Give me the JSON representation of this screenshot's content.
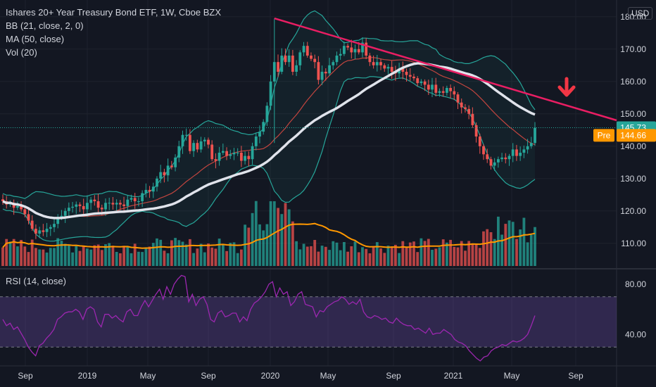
{
  "header": {
    "title": "Ishares 20+ Year Treasury Bond ETF, 1W, Cboe BZX",
    "indicators": [
      "BB (21, close, 2, 0)",
      "MA (50, close)",
      "Vol (20)"
    ],
    "currency": "USD"
  },
  "rsi": {
    "label": "RSI (14, close)"
  },
  "price_tags": {
    "last": {
      "label": "145.73",
      "value": 145.73,
      "color": "#26a69a"
    },
    "pre": {
      "tag": "Pre",
      "label": "144.66",
      "value": 144.66,
      "color": "#ff9800"
    }
  },
  "colors": {
    "background": "#131722",
    "up": "#26a69a",
    "down": "#ef5350",
    "ma": "#e0e3eb",
    "bb_mid": "#c2453f",
    "bb_band": "#26a69a",
    "trendline": "#e91e63",
    "arrow": "#f23645",
    "volume_ma": "#ff9800",
    "rsi": "#9c27b0",
    "rsi_band": "#7e57c2"
  },
  "chart_data": [
    {
      "type": "candlestick",
      "title": "Ishares 20+ Year Treasury Bond ETF, 1W, Cboe BZX",
      "x_ticks": [
        "Sep",
        "2019",
        "May",
        "Sep",
        "2020",
        "May",
        "Sep",
        "2021",
        "May",
        "Sep"
      ],
      "y_ticks": [
        "110.00",
        "120.00",
        "130.00",
        "140.00",
        "150.00",
        "160.00",
        "170.00",
        "180.00"
      ],
      "ylim": [
        103,
        183
      ],
      "series": [
        {
          "name": "Price close (weekly, approx.)",
          "values": [
            123,
            122,
            122.5,
            121,
            121.5,
            120.5,
            119,
            117,
            114.5,
            113,
            114,
            113.5,
            114.5,
            115,
            116,
            118,
            118.5,
            120,
            121,
            121.3,
            122,
            121.5,
            120.5,
            122.5,
            123.5,
            123,
            121,
            120.5,
            122.5,
            122.5,
            122,
            122.5,
            122,
            121.5,
            123.5,
            124,
            123,
            123,
            125.5,
            126.5,
            126,
            127.5,
            130,
            132,
            131,
            134,
            133.5,
            136.5,
            140,
            143.5,
            143.5,
            138.5,
            141,
            139,
            141.5,
            142,
            140.5,
            136,
            135.5,
            138,
            138.5,
            137,
            137.5,
            138,
            138,
            135.5,
            137,
            136,
            140,
            143,
            144.5,
            147.5,
            152.5,
            160,
            166,
            163,
            168,
            166,
            168,
            163,
            165,
            169,
            171,
            168,
            167,
            166,
            160.5,
            163,
            162.5,
            165,
            166,
            168,
            168.5,
            171,
            170.5,
            169,
            170,
            169,
            172,
            168,
            166,
            165,
            166,
            165,
            164,
            164.5,
            163,
            162.5,
            164,
            163,
            162,
            161.5,
            161,
            159.5,
            160,
            159,
            157.5,
            159,
            156.5,
            157,
            156.5,
            158,
            157,
            156,
            153.5,
            152,
            151.5,
            150,
            146.5,
            143,
            140,
            137.5,
            136,
            134,
            135,
            136,
            136.5,
            136,
            137,
            139,
            137,
            138,
            139,
            140,
            141,
            145.7
          ]
        },
        {
          "name": "Moving Average (50, close)",
          "values": []
        },
        {
          "name": "Bollinger Bands (21, close, 2, 0)",
          "values": []
        }
      ],
      "annotations": {
        "trendline": {
          "from": {
            "x": "2020-03",
            "y": 179.5
          },
          "to": {
            "x": "2021-10",
            "y": 148
          }
        },
        "arrow": "downward arrow near Aug 2021",
        "last_price": 145.73,
        "pre_market": 144.66
      }
    },
    {
      "type": "bar",
      "title": "Vol (20)",
      "values": []
    },
    {
      "type": "line",
      "title": "RSI (14, close)",
      "y_ticks": [
        "40.00",
        "80.00"
      ],
      "ylim": [
        15,
        90
      ],
      "band": [
        30,
        70
      ],
      "values": [
        52,
        47,
        49,
        44,
        46,
        41,
        36,
        30,
        26,
        23,
        31,
        33,
        37,
        40,
        44,
        52,
        54,
        57,
        58,
        58,
        60,
        58,
        52,
        60,
        62,
        60,
        50,
        46,
        56,
        56,
        53,
        55,
        52,
        50,
        58,
        60,
        55,
        55,
        62,
        67,
        62,
        67,
        72,
        76,
        68,
        78,
        72,
        80,
        84,
        87,
        86,
        66,
        72,
        63,
        68,
        70,
        64,
        52,
        50,
        57,
        59,
        54,
        55,
        57,
        57,
        50,
        54,
        51,
        60,
        65,
        67,
        70,
        74,
        80,
        82,
        70,
        77,
        72,
        74,
        63,
        66,
        72,
        74,
        64,
        63,
        62,
        54,
        59,
        58,
        62,
        64,
        66,
        67,
        70,
        68,
        64,
        66,
        64,
        68,
        58,
        54,
        53,
        55,
        54,
        52,
        53,
        50,
        49,
        53,
        50,
        48,
        47,
        47,
        44,
        45,
        43,
        41,
        45,
        40,
        41,
        41,
        44,
        42,
        40,
        36,
        34,
        33,
        31,
        27,
        24,
        21,
        19,
        22,
        23,
        27,
        29,
        30,
        32,
        31,
        33,
        35,
        34,
        35,
        37,
        40,
        47,
        55
      ]
    }
  ]
}
